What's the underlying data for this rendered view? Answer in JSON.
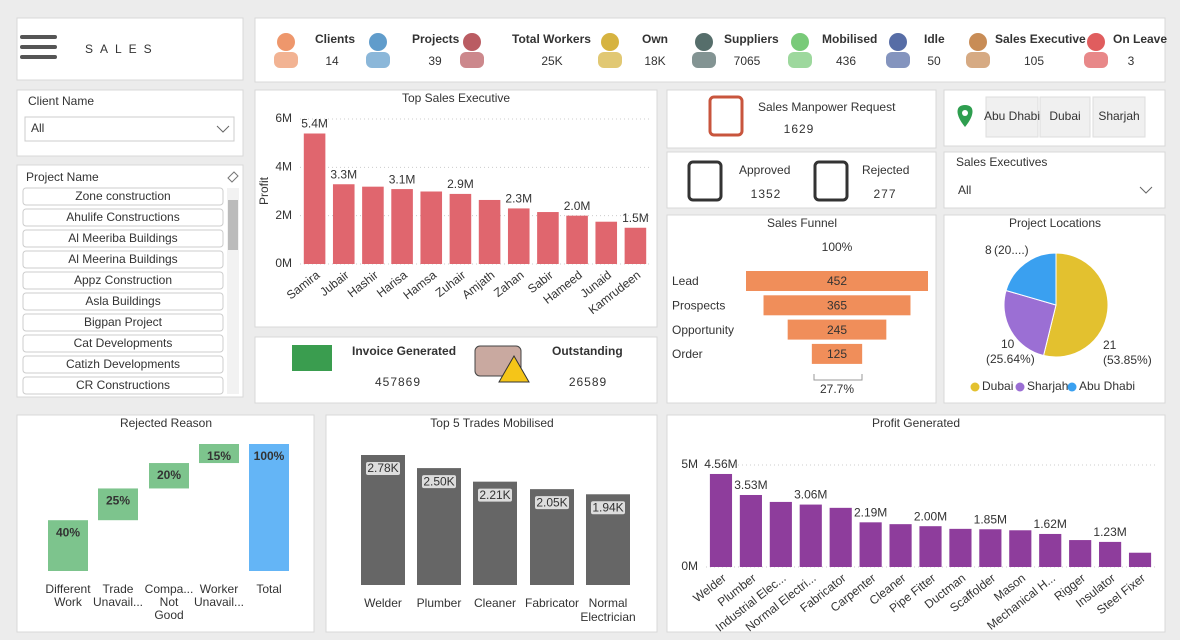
{
  "header": {
    "title": "SALES"
  },
  "kpis": [
    {
      "label": "Clients",
      "value": 14,
      "color": "#e8743b"
    },
    {
      "label": "Projects",
      "value": 39,
      "color": "#2b7bb9"
    },
    {
      "label": "Total Workers",
      "value": "25K",
      "color": "#a3262e"
    },
    {
      "label": "Own",
      "value": "18K",
      "color": "#c89a00"
    },
    {
      "label": "Suppliers",
      "value": 7065,
      "color": "#1e3d3a"
    },
    {
      "label": "Mobilised",
      "value": 436,
      "color": "#4cb84c"
    },
    {
      "label": "Idle",
      "value": 50,
      "color": "#1f3c88"
    },
    {
      "label": "Sales Executive",
      "value": 105,
      "color": "#b5651d"
    },
    {
      "label": "On Leave",
      "value": 3,
      "color": "#d62728"
    }
  ],
  "filters": {
    "client": {
      "label": "Client Name",
      "value": "All"
    },
    "project": {
      "label": "Project Name",
      "options": [
        "Zone construction",
        "Ahulife Constructions",
        "Al Meeriba Buildings",
        "Al Meerina Buildings",
        "Appz Construction",
        "Asla Buildings",
        "Bigpan Project",
        "Cat Developments",
        "Catizh Developments",
        "CR Constructions"
      ]
    },
    "location": {
      "options": [
        "Abu Dhabi",
        "Dubai",
        "Sharjah"
      ]
    },
    "sales_executives": {
      "label": "Sales Executives",
      "value": "All"
    }
  },
  "cards": {
    "manpower": {
      "label": "Sales Manpower Request",
      "value": 1629,
      "color": "#c8553d"
    },
    "approved": {
      "label": "Approved",
      "value": 1352,
      "color": "#2e9e4f"
    },
    "rejected": {
      "label": "Rejected",
      "value": 277,
      "color": "#2b7bb9"
    },
    "invoice": {
      "label": "Invoice Generated",
      "value": 457869,
      "color": "#2e9e4f"
    },
    "outstanding": {
      "label": "Outstanding",
      "value": 26589,
      "color": "#c0203a"
    }
  },
  "chart_data": [
    {
      "type": "bar",
      "title": "Top Sales Executive",
      "y_label": "Profit",
      "color": "#e0666e",
      "grid": true,
      "categories": [
        "Samira",
        "Jubair",
        "Hashir",
        "Harisa",
        "Hamsa",
        "Zuhair",
        "Amjath",
        "Zahan",
        "Sabir",
        "Hameed",
        "Junaid",
        "Kamrudeen"
      ],
      "values": [
        5400000,
        3300000,
        3200000,
        3100000,
        3000000,
        2900000,
        2650000,
        2300000,
        2150000,
        2000000,
        1750000,
        1500000
      ],
      "value_labels": [
        "5.4M",
        "3.3M",
        null,
        "3.1M",
        null,
        "2.9M",
        null,
        "2.3M",
        null,
        "2.0M",
        null,
        "1.5M"
      ],
      "ylim": [
        0,
        6000000
      ],
      "yticks": [
        {
          "value": 0,
          "label": "0M"
        },
        {
          "value": 2000000,
          "label": "2M"
        },
        {
          "value": 4000000,
          "label": "4M"
        },
        {
          "value": 6000000,
          "label": "6M"
        }
      ]
    },
    {
      "type": "funnel",
      "title": "Sales Funnel",
      "color": "#f08e5a",
      "categories": [
        "Lead",
        "Prospects",
        "Opportunity",
        "Order"
      ],
      "values": [
        452,
        365,
        245,
        125
      ],
      "first_label": "100%",
      "last_label": "27.7%"
    },
    {
      "type": "pie",
      "title": "Project Locations",
      "categories": [
        "Dubai",
        "Sharjah",
        "Abu Dhabi"
      ],
      "values": [
        21,
        10,
        8
      ],
      "percent_labels": [
        "(53.85%)",
        "(25.64%)",
        "(20....)"
      ],
      "colors": [
        "#e3c12f",
        "#9b6fd4",
        "#3aa0f0"
      ]
    },
    {
      "type": "waterfall",
      "title": "Rejected Reason",
      "color": "#7dc48d",
      "total_color": "#64b5f6",
      "categories": [
        "Different Work",
        "Trade Unavail...",
        "Compa... Not Good",
        "Worker Unavail...",
        "Total"
      ],
      "values": [
        40,
        25,
        20,
        15,
        100
      ],
      "value_labels": [
        "40%",
        "25%",
        "20%",
        "15%",
        "100%"
      ]
    },
    {
      "type": "column",
      "title": "Top 5 Trades Mobilised",
      "color": "#666666",
      "categories": [
        "Welder",
        "Plumber",
        "Cleaner",
        "Fabricator",
        "Normal Electrician"
      ],
      "values": [
        2780,
        2500,
        2210,
        2050,
        1940
      ],
      "value_labels": [
        "2.78K",
        "2.50K",
        "2.21K",
        "2.05K",
        "1.94K"
      ]
    },
    {
      "type": "bar",
      "title": "Profit Generated",
      "color": "#8e3d9c",
      "grid": true,
      "categories": [
        "Welder",
        "Plumber",
        "Industrial Elec...",
        "Normal Electri...",
        "Fabricator",
        "Carpenter",
        "Cleaner",
        "Pipe Fitter",
        "Ductman",
        "Scaffolder",
        "Mason",
        "Mechanical H...",
        "Rigger",
        "Insulator",
        "Steel Fixer"
      ],
      "values": [
        4560000,
        3530000,
        3190000,
        3060000,
        2900000,
        2190000,
        2100000,
        2000000,
        1870000,
        1850000,
        1800000,
        1620000,
        1320000,
        1230000,
        700000
      ],
      "value_labels": [
        "4.56M",
        "3.53M",
        null,
        "3.06M",
        null,
        "2.19M",
        null,
        "2.00M",
        null,
        "1.85M",
        null,
        "1.62M",
        null,
        "1.23M",
        null
      ],
      "ylim": [
        0,
        5000000
      ],
      "yticks": [
        {
          "value": 0,
          "label": "0M"
        },
        {
          "value": 5000000,
          "label": "5M"
        }
      ]
    }
  ]
}
